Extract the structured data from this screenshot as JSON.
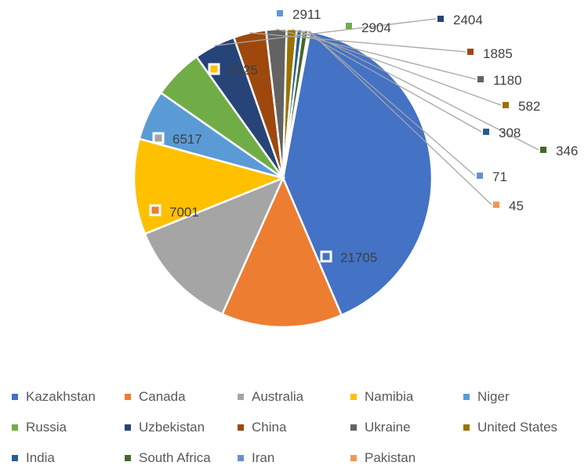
{
  "chart_data": {
    "type": "pie",
    "title": "",
    "categories": [
      "Kazakhstan",
      "Canada",
      "Australia",
      "Namibia",
      "Niger",
      "Russia",
      "Uzbekistan",
      "China",
      "Ukraine",
      "United States",
      "India",
      "South Africa",
      "Iran",
      "Pakistan"
    ],
    "values": [
      21705,
      7001,
      6517,
      5525,
      2911,
      2904,
      2404,
      1885,
      1180,
      582,
      308,
      346,
      71,
      45
    ],
    "colors": [
      "#4472C4",
      "#ED7D31",
      "#A5A5A5",
      "#FFC000",
      "#5B9BD5",
      "#70AD47",
      "#264478",
      "#9E480E",
      "#636363",
      "#997300",
      "#255E91",
      "#43682B",
      "#698ED0",
      "#F1975A"
    ],
    "data_labels": [
      "21705",
      "7001",
      "6517",
      "5525",
      "2911",
      "2904",
      "2404",
      "1885",
      "1180",
      "582",
      "308",
      "346",
      "71",
      "45"
    ],
    "legend_position": "bottom"
  }
}
